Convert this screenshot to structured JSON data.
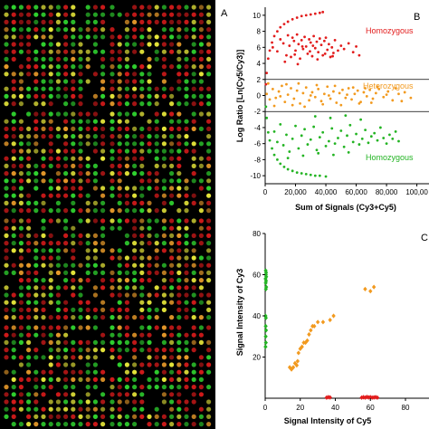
{
  "panels": {
    "a_label": "A",
    "b_label": "B",
    "c_label": "C"
  },
  "colors": {
    "array_bg": "#000000",
    "spot_green": "#2fd22f",
    "spot_red": "#d21a1a",
    "spot_yellow": "#e6e63a",
    "spot_orange": "#e89a2a",
    "homo_red": "#e21c1c",
    "hetero_orange": "#f29a1f",
    "homo_green": "#23b423",
    "threshold_line": "#000000"
  },
  "chart_data": [
    {
      "type": "scatter",
      "panel": "B",
      "xlabel": "Sum of Signals (Cy3+Cy5)",
      "ylabel": "Log Ratio [Ln(Cy5/Cy3)]",
      "xlim": [
        0,
        100000
      ],
      "ylim": [
        -11,
        11
      ],
      "x_ticks": [
        "0",
        "20,000",
        "40,000",
        "60,000",
        "80,000",
        "100,00"
      ],
      "y_ticks": [
        "-10",
        "-8",
        "-6",
        "-4",
        "-2",
        "0",
        "2",
        "4",
        "6",
        "8",
        "10"
      ],
      "threshold_lines": [
        2,
        -2
      ],
      "annotations": [
        "Homozygous",
        "Heterozygous",
        "Homozygous"
      ],
      "series": [
        {
          "points": [
            [
              500,
              1.4
            ],
            [
              1000,
              2.8
            ],
            [
              2000,
              4.6
            ],
            [
              3000,
              5.6
            ],
            [
              4500,
              6.6
            ],
            [
              6000,
              7.4
            ],
            [
              8000,
              8.0
            ],
            [
              10000,
              8.5
            ],
            [
              12500,
              8.9
            ],
            [
              15000,
              9.2
            ],
            [
              18000,
              9.5
            ],
            [
              21000,
              9.7
            ],
            [
              24000,
              9.9
            ],
            [
              27000,
              10.0
            ],
            [
              30000,
              10.1
            ],
            [
              33000,
              10.2
            ],
            [
              36000,
              10.3
            ],
            [
              38000,
              10.4
            ],
            [
              5000,
              6.0
            ],
            [
              8000,
              5.5
            ],
            [
              10000,
              7.0
            ],
            [
              12000,
              6.5
            ],
            [
              14000,
              5.0
            ],
            [
              15000,
              7.5
            ],
            [
              16000,
              6.2
            ],
            [
              17000,
              4.8
            ],
            [
              18000,
              7.2
            ],
            [
              19000,
              6.8
            ],
            [
              20000,
              5.6
            ],
            [
              21000,
              7.6
            ],
            [
              22000,
              6.4
            ],
            [
              23000,
              4.6
            ],
            [
              24000,
              6.9
            ],
            [
              25000,
              5.8
            ],
            [
              26000,
              7.3
            ],
            [
              27000,
              6.1
            ],
            [
              28000,
              5.2
            ],
            [
              29000,
              7.0
            ],
            [
              30000,
              6.6
            ],
            [
              31000,
              4.9
            ],
            [
              32000,
              7.4
            ],
            [
              33000,
              5.9
            ],
            [
              34000,
              6.7
            ],
            [
              35000,
              5.4
            ],
            [
              36000,
              7.1
            ],
            [
              37000,
              6.3
            ],
            [
              38000,
              5.0
            ],
            [
              39000,
              6.8
            ],
            [
              40000,
              7.2
            ],
            [
              41000,
              5.7
            ],
            [
              42000,
              6.4
            ],
            [
              43000,
              4.8
            ],
            [
              44000,
              6.0
            ],
            [
              45000,
              5.3
            ],
            [
              46000,
              6.9
            ],
            [
              48000,
              5.6
            ],
            [
              50000,
              6.2
            ],
            [
              52000,
              5.8
            ],
            [
              55000,
              6.5
            ],
            [
              58000,
              5.4
            ],
            [
              60000,
              6.1
            ],
            [
              62000,
              5.0
            ],
            [
              13000,
              4.2
            ],
            [
              19500,
              5.1
            ],
            [
              24500,
              6.1
            ],
            [
              29500,
              5.5
            ],
            [
              34500,
              4.5
            ],
            [
              39500,
              5.2
            ],
            [
              44500,
              4.9
            ],
            [
              21500,
              3.9
            ],
            [
              31500,
              6.2
            ]
          ],
          "color": "#e21c1c"
        },
        {
          "points": [
            [
              1000,
              0.2
            ],
            [
              3000,
              -0.5
            ],
            [
              5000,
              0.8
            ],
            [
              7000,
              -0.3
            ],
            [
              9000,
              0.5
            ],
            [
              11000,
              1.2
            ],
            [
              13000,
              -0.8
            ],
            [
              15000,
              0.1
            ],
            [
              17000,
              0.9
            ],
            [
              19000,
              -0.4
            ],
            [
              21000,
              0.6
            ],
            [
              23000,
              -1.0
            ],
            [
              25000,
              0.3
            ],
            [
              27000,
              1.0
            ],
            [
              29000,
              -0.6
            ],
            [
              31000,
              0.4
            ],
            [
              33000,
              -0.2
            ],
            [
              35000,
              0.8
            ],
            [
              37000,
              -0.7
            ],
            [
              39000,
              0.2
            ],
            [
              41000,
              1.1
            ],
            [
              43000,
              -0.4
            ],
            [
              45000,
              0.5
            ],
            [
              47000,
              -0.9
            ],
            [
              49000,
              0.3
            ],
            [
              51000,
              0.7
            ],
            [
              53000,
              -0.3
            ],
            [
              55000,
              0.9
            ],
            [
              57000,
              -0.5
            ],
            [
              59000,
              0.2
            ],
            [
              61000,
              0.6
            ],
            [
              63000,
              -0.8
            ],
            [
              65000,
              0.4
            ],
            [
              67000,
              -0.1
            ],
            [
              69000,
              0.7
            ],
            [
              71000,
              -0.4
            ],
            [
              73000,
              0.3
            ],
            [
              75000,
              0.8
            ],
            [
              78000,
              -0.2
            ],
            [
              81000,
              0.5
            ],
            [
              84000,
              -0.6
            ],
            [
              88000,
              0.2
            ],
            [
              92000,
              0.4
            ],
            [
              96000,
              -0.3
            ],
            [
              2000,
              1.5
            ],
            [
              6000,
              -1.3
            ],
            [
              10000,
              -0.1
            ],
            [
              14000,
              1.4
            ],
            [
              18000,
              -1.2
            ],
            [
              22000,
              1.5
            ],
            [
              26000,
              -1.4
            ],
            [
              30000,
              0.0
            ],
            [
              34000,
              1.3
            ],
            [
              38000,
              -1.1
            ],
            [
              42000,
              0.0
            ],
            [
              46000,
              1.2
            ],
            [
              50000,
              -1.2
            ],
            [
              54000,
              0.1
            ],
            [
              58000,
              1.0
            ],
            [
              62000,
              -1.0
            ],
            [
              66000,
              0.9
            ],
            [
              70000,
              -0.9
            ],
            [
              74000,
              1.1
            ],
            [
              80000,
              0.1
            ],
            [
              86000,
              0.9
            ],
            [
              90000,
              -0.7
            ]
          ],
          "color": "#f29a1f"
        },
        {
          "points": [
            [
              500,
              -1.4
            ],
            [
              1000,
              -2.8
            ],
            [
              2000,
              -4.6
            ],
            [
              3000,
              -5.6
            ],
            [
              4500,
              -6.6
            ],
            [
              6000,
              -7.4
            ],
            [
              8000,
              -8.0
            ],
            [
              10000,
              -8.5
            ],
            [
              12500,
              -8.9
            ],
            [
              15000,
              -9.2
            ],
            [
              18000,
              -9.4
            ],
            [
              21000,
              -9.6
            ],
            [
              24000,
              -9.7
            ],
            [
              27000,
              -9.8
            ],
            [
              30000,
              -9.9
            ],
            [
              33000,
              -10.0
            ],
            [
              36000,
              -10.0
            ],
            [
              40000,
              -10.1
            ],
            [
              6000,
              -4.5
            ],
            [
              8000,
              -5.8
            ],
            [
              10000,
              -3.6
            ],
            [
              12000,
              -6.2
            ],
            [
              14000,
              -4.9
            ],
            [
              16000,
              -7.0
            ],
            [
              18000,
              -5.4
            ],
            [
              20000,
              -3.8
            ],
            [
              22000,
              -6.6
            ],
            [
              24000,
              -5.0
            ],
            [
              26000,
              -4.2
            ],
            [
              28000,
              -6.1
            ],
            [
              30000,
              -5.5
            ],
            [
              32000,
              -3.9
            ],
            [
              34000,
              -6.8
            ],
            [
              36000,
              -5.2
            ],
            [
              38000,
              -4.6
            ],
            [
              40000,
              -6.3
            ],
            [
              42000,
              -5.7
            ],
            [
              44000,
              -4.1
            ],
            [
              46000,
              -6.0
            ],
            [
              48000,
              -5.3
            ],
            [
              50000,
              -4.4
            ],
            [
              52000,
              -6.4
            ],
            [
              54000,
              -5.0
            ],
            [
              56000,
              -3.7
            ],
            [
              58000,
              -5.8
            ],
            [
              60000,
              -4.8
            ],
            [
              62000,
              -6.1
            ],
            [
              64000,
              -5.4
            ],
            [
              66000,
              -4.3
            ],
            [
              68000,
              -5.9
            ],
            [
              70000,
              -5.1
            ],
            [
              72000,
              -4.7
            ],
            [
              74000,
              -5.6
            ],
            [
              76000,
              -4.0
            ],
            [
              78000,
              -5.3
            ],
            [
              80000,
              -6.0
            ],
            [
              82000,
              -4.9
            ],
            [
              84000,
              -5.4
            ],
            [
              86000,
              -4.5
            ],
            [
              88000,
              -5.7
            ],
            [
              15000,
              -7.8
            ],
            [
              25000,
              -7.5
            ],
            [
              35000,
              -7.2
            ],
            [
              45000,
              -7.4
            ],
            [
              55000,
              -7.1
            ],
            [
              33000,
              -2.6
            ],
            [
              43000,
              -2.8
            ],
            [
              53000,
              -2.5
            ],
            [
              63000,
              -3.0
            ]
          ],
          "color": "#23b423"
        }
      ]
    },
    {
      "type": "scatter",
      "panel": "C",
      "xlabel": "Signal Intensity of Cy5",
      "ylabel": "Signal Intensity of Cy3",
      "xlim": [
        0,
        80
      ],
      "ylim": [
        0,
        80
      ],
      "x_ticks": [
        "0",
        "20",
        "40",
        "60",
        "80"
      ],
      "y_ticks": [
        "20",
        "40",
        "60",
        "80"
      ],
      "series": [
        {
          "points": [
            [
              0.3,
              62
            ],
            [
              0.5,
              61
            ],
            [
              0.4,
              60
            ],
            [
              0.6,
              59
            ],
            [
              0.2,
              58
            ],
            [
              0.5,
              57
            ],
            [
              0.3,
              56
            ],
            [
              0.6,
              54
            ],
            [
              0.4,
              53
            ],
            [
              0.2,
              40
            ],
            [
              0.4,
              39
            ],
            [
              0.3,
              35
            ],
            [
              0.5,
              33
            ],
            [
              0.3,
              30
            ],
            [
              0.4,
              27
            ],
            [
              0.2,
              25
            ]
          ],
          "color": "#23b423"
        },
        {
          "points": [
            [
              14,
              15
            ],
            [
              15,
              14
            ],
            [
              16,
              15
            ],
            [
              17,
              17
            ],
            [
              18,
              16
            ],
            [
              18.5,
              18
            ],
            [
              19,
              22
            ],
            [
              20,
              24
            ],
            [
              21,
              25
            ],
            [
              22,
              27
            ],
            [
              23,
              27
            ],
            [
              24,
              28
            ],
            [
              25,
              31
            ],
            [
              26,
              33
            ],
            [
              27,
              35
            ],
            [
              28,
              35
            ],
            [
              30,
              37
            ],
            [
              33,
              37
            ],
            [
              37,
              38
            ],
            [
              39,
              40
            ],
            [
              57,
              53
            ],
            [
              60,
              52
            ],
            [
              62,
              54
            ]
          ],
          "color": "#f29a1f"
        },
        {
          "points": [
            [
              35,
              0.3
            ],
            [
              36,
              0.5
            ],
            [
              37,
              0.4
            ],
            [
              55,
              0.3
            ],
            [
              56,
              0.5
            ],
            [
              57,
              0.3
            ],
            [
              58,
              0.6
            ],
            [
              59,
              0.4
            ],
            [
              60,
              0.5
            ],
            [
              61,
              0.3
            ],
            [
              62,
              0.4
            ],
            [
              63,
              0.5
            ],
            [
              64,
              0.3
            ]
          ],
          "color": "#e21c1c"
        }
      ]
    }
  ]
}
